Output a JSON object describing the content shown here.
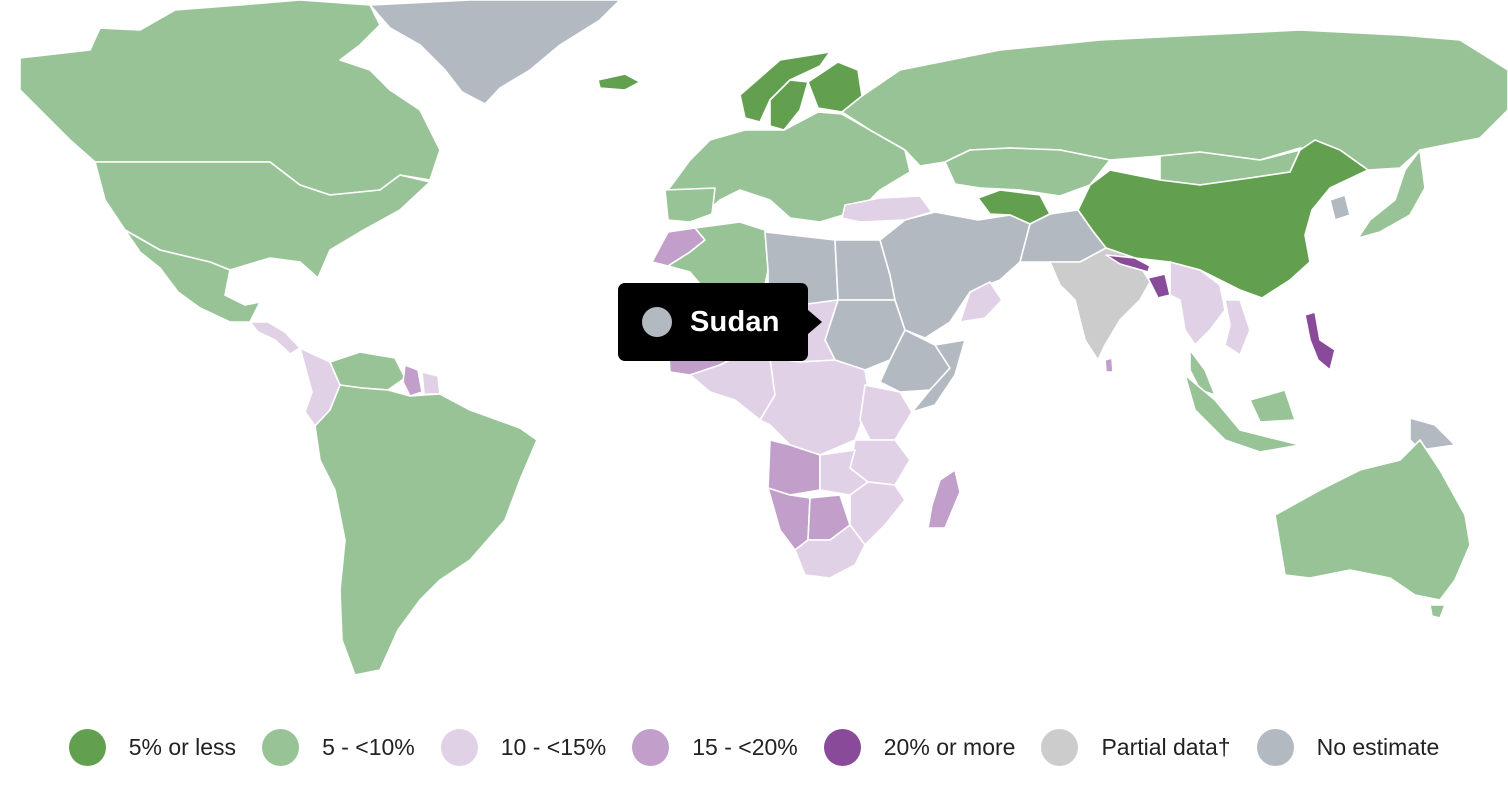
{
  "tooltip": {
    "country": "Sudan",
    "category": "No estimate"
  },
  "legend": [
    {
      "label": "5% or less",
      "color": "#62a050"
    },
    {
      "label": "5 - <10%",
      "color": "#98c397"
    },
    {
      "label": "10 - <15%",
      "color": "#e1d1e6"
    },
    {
      "label": "15 - <20%",
      "color": "#c19fca"
    },
    {
      "label": "20% or more",
      "color": "#8a4a9a"
    },
    {
      "label": "Partial data†",
      "color": "#cccccc"
    },
    {
      "label": "No estimate",
      "color": "#b2b9c1"
    }
  ],
  "countries": [
    {
      "name": "Canada",
      "category": "5 - <10%"
    },
    {
      "name": "United States",
      "category": "5 - <10%"
    },
    {
      "name": "Mexico",
      "category": "5 - <10%"
    },
    {
      "name": "Greenland",
      "category": "No estimate"
    },
    {
      "name": "Central America",
      "category": "10 - <15%"
    },
    {
      "name": "Colombia",
      "category": "10 - <15%"
    },
    {
      "name": "Venezuela",
      "category": "5 - <10%"
    },
    {
      "name": "Guyana",
      "category": "15 - <20%"
    },
    {
      "name": "Suriname",
      "category": "10 - <15%"
    },
    {
      "name": "South America",
      "category": "5 - <10%"
    },
    {
      "name": "Iceland",
      "category": "5% or less"
    },
    {
      "name": "Norway",
      "category": "5% or less"
    },
    {
      "name": "Sweden",
      "category": "5% or less"
    },
    {
      "name": "Finland",
      "category": "5% or less"
    },
    {
      "name": "Europe",
      "category": "5 - <10%"
    },
    {
      "name": "Spain",
      "category": "5 - <10%"
    },
    {
      "name": "Turkey",
      "category": "10 - <15%"
    },
    {
      "name": "Russia",
      "category": "5 - <10%"
    },
    {
      "name": "Kazakhstan",
      "category": "5 - <10%"
    },
    {
      "name": "Mongolia",
      "category": "5 - <10%"
    },
    {
      "name": "Turkmenistan",
      "category": "5% or less"
    },
    {
      "name": "China",
      "category": "5% or less"
    },
    {
      "name": "Japan",
      "category": "5 - <10%"
    },
    {
      "name": "Korea",
      "category": "No estimate"
    },
    {
      "name": "Morocco",
      "category": "15 - <20%"
    },
    {
      "name": "Algeria",
      "category": "5 - <10%"
    },
    {
      "name": "Libya",
      "category": "No estimate"
    },
    {
      "name": "Egypt",
      "category": "No estimate"
    },
    {
      "name": "Sudan",
      "category": "No estimate"
    },
    {
      "name": "Ethiopia",
      "category": "No estimate"
    },
    {
      "name": "Somalia",
      "category": "No estimate"
    },
    {
      "name": "Sahel",
      "category": "10 - <15%"
    },
    {
      "name": "Mali",
      "category": "15 - <20%"
    },
    {
      "name": "West Africa",
      "category": "10 - <15%"
    },
    {
      "name": "Central Africa",
      "category": "10 - <15%"
    },
    {
      "name": "Kenya",
      "category": "10 - <15%"
    },
    {
      "name": "Tanzania",
      "category": "10 - <15%"
    },
    {
      "name": "Angola",
      "category": "15 - <20%"
    },
    {
      "name": "Namibia",
      "category": "15 - <20%"
    },
    {
      "name": "Botswana",
      "category": "15 - <20%"
    },
    {
      "name": "Zambia",
      "category": "10 - <15%"
    },
    {
      "name": "Mozambique",
      "category": "10 - <15%"
    },
    {
      "name": "South Africa",
      "category": "10 - <15%"
    },
    {
      "name": "Madagascar",
      "category": "15 - <20%"
    },
    {
      "name": "Middle East",
      "category": "No estimate"
    },
    {
      "name": "Oman",
      "category": "10 - <15%"
    },
    {
      "name": "Afghanistan",
      "category": "No estimate"
    },
    {
      "name": "India",
      "category": "Partial data†"
    },
    {
      "name": "Nepal",
      "category": "20% or more"
    },
    {
      "name": "Bangladesh",
      "category": "20% or more"
    },
    {
      "name": "Sri Lanka",
      "category": "15 - <20%"
    },
    {
      "name": "Southeast Asia",
      "category": "10 - <15%"
    },
    {
      "name": "Vietnam",
      "category": "10 - <15%"
    },
    {
      "name": "Philippines",
      "category": "20% or more"
    },
    {
      "name": "Malaysia",
      "category": "5 - <10%"
    },
    {
      "name": "Indonesia",
      "category": "5 - <10%"
    },
    {
      "name": "Papua New Guinea",
      "category": "No estimate"
    },
    {
      "name": "Australia",
      "category": "5 - <10%"
    }
  ]
}
